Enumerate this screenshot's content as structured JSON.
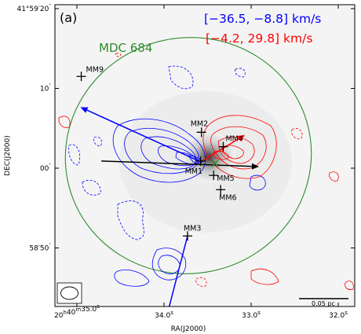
{
  "chart_data": {
    "type": "contour-map",
    "panel_label": "(a)",
    "region_label": "MDC 684",
    "velocity_ranges": [
      {
        "label": "[−36.5, −8.8] km/s",
        "color": "#0000ff"
      },
      {
        "label": "[−4.2, 29.8] km/s",
        "color": "#ff0000"
      }
    ],
    "xlabel": "RA(J2000)",
    "ylabel": "DEC(J2000)",
    "x_ticks": [
      {
        "value_s": 35.0,
        "label_main": "20",
        "label_sup": "h",
        "label_main2": "40",
        "label_sup2": "m",
        "label_main3": "35.0",
        "label_sup3": "s"
      },
      {
        "value_s": 34.0,
        "label_main": "34.0",
        "label_sup": "s"
      },
      {
        "value_s": 33.0,
        "label_main": "33.0",
        "label_sup": "s"
      },
      {
        "value_s": 32.0,
        "label_main": "32.0",
        "label_sup": "s"
      }
    ],
    "y_ticks": [
      {
        "value_arcsec": 80,
        "label_main": "41°59′20",
        "label_sup": "″"
      },
      {
        "value_arcsec": 70,
        "label_main": "10",
        "label_sup": "″"
      },
      {
        "value_arcsec": 60,
        "label_main": "00",
        "label_sup": "″"
      },
      {
        "value_arcsec": 50,
        "label_main": "58′50",
        "label_sup": "″"
      }
    ],
    "sources": [
      {
        "name": "MM1",
        "ra_s": 33.58,
        "dec_arcsec": 60.9
      },
      {
        "name": "MM2",
        "ra_s": 33.57,
        "dec_arcsec": 64.5
      },
      {
        "name": "MM3",
        "ra_s": 33.73,
        "dec_arcsec": 51.5
      },
      {
        "name": "MM4",
        "ra_s": 33.32,
        "dec_arcsec": 62.7
      },
      {
        "name": "MM5",
        "ra_s": 33.43,
        "dec_arcsec": 59.1
      },
      {
        "name": "MM6",
        "ra_s": 33.35,
        "dec_arcsec": 57.3
      },
      {
        "name": "MM9",
        "ra_s": 34.95,
        "dec_arcsec": 71.5
      }
    ],
    "outflows": [
      {
        "color": "blue",
        "from": [
          33.58,
          60.8
        ],
        "to": [
          34.95,
          67.6
        ]
      },
      {
        "color": "red",
        "from": [
          33.58,
          60.8
        ],
        "to": [
          33.08,
          64.1
        ]
      },
      {
        "color": "blue",
        "from": [
          33.73,
          51.5
        ],
        "to": [
          33.97,
          41.4
        ]
      },
      {
        "color": "black",
        "from": [
          34.72,
          60.9
        ],
        "to": [
          32.92,
          60.2
        ]
      }
    ],
    "scale_bar_label": "0.05 pc",
    "colors": {
      "blue": "#0000ff",
      "red": "#ff0000",
      "green": "#2e8b2e",
      "black": "#000000"
    }
  }
}
